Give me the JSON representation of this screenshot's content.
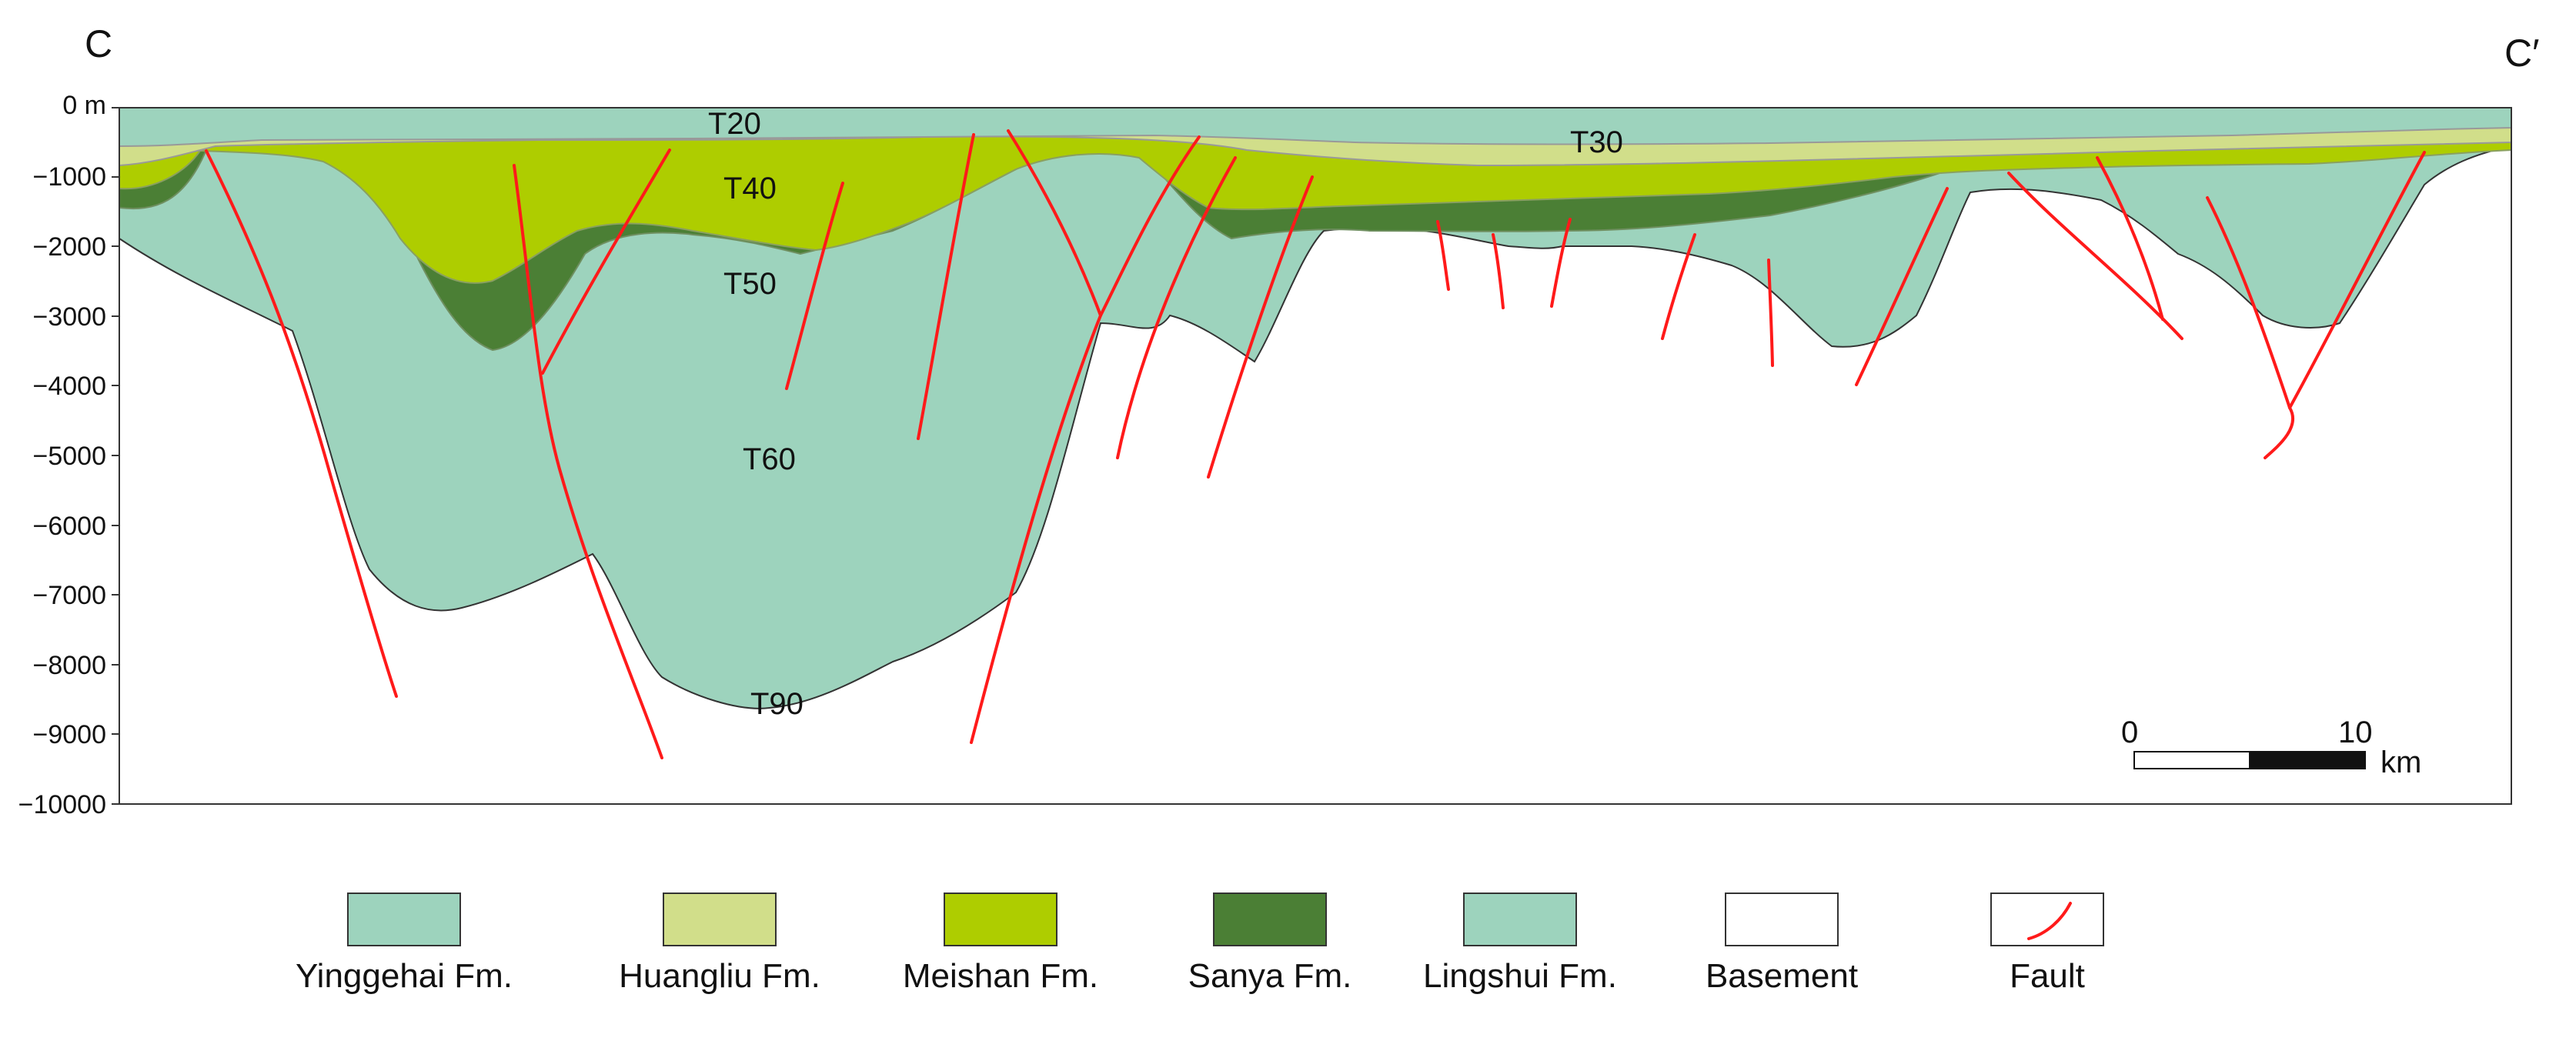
{
  "section": {
    "start_label": "C",
    "end_label": "C′",
    "depth_axis": {
      "labels": [
        "0 m",
        "−1000",
        "−2000",
        "−3000",
        "−4000",
        "−5000",
        "−6000",
        "−7000",
        "−8000",
        "−9000",
        "−10000"
      ]
    },
    "horizons": {
      "t20": "T20",
      "t30": "T30",
      "t40": "T40",
      "t50": "T50",
      "t60": "T60",
      "t90": "T90"
    },
    "scale_bar": {
      "start": "0",
      "end": "10",
      "unit": "km"
    }
  },
  "legend": {
    "items": [
      {
        "label": "Yinggehai Fm.",
        "color": "#9dd3bd"
      },
      {
        "label": "Huangliu Fm.",
        "color": "#d1de8a"
      },
      {
        "label": "Meishan Fm.",
        "color": "#aecd00"
      },
      {
        "label": "Sanya Fm.",
        "color": "#4b7f35"
      },
      {
        "label": "Lingshui Fm.",
        "color": "#9dd3bd"
      },
      {
        "label": "Basement",
        "color": "#ffffff"
      },
      {
        "label": "Fault",
        "color": "#ff1a1a"
      }
    ]
  }
}
